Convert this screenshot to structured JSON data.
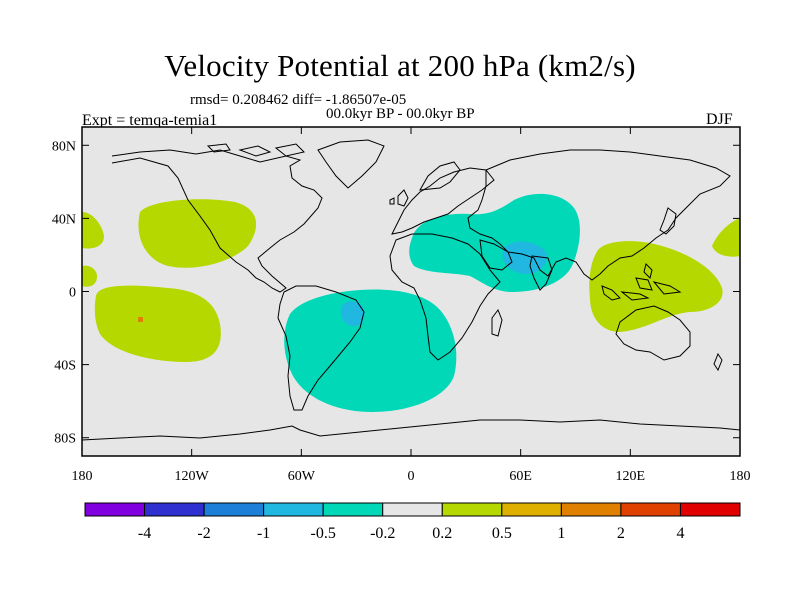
{
  "map": {
    "title": "Velocity Potential at 200 hPa (km2/s)",
    "stats_line": "rmsd= 0.208462 diff= -1.86507e-05",
    "period_line": "00.0kyr BP - 00.0kyr BP",
    "experiment_label": "Expt = temqa-temia1",
    "season_label": "DJF",
    "projection": "cylindrical equidistant",
    "lon_range": [
      -180,
      180
    ],
    "lat_range": [
      -90,
      90
    ],
    "lon_ticks": [
      {
        "value": -180,
        "label": "180"
      },
      {
        "value": -120,
        "label": "120W"
      },
      {
        "value": -60,
        "label": "60W"
      },
      {
        "value": 0,
        "label": "0"
      },
      {
        "value": 60,
        "label": "60E"
      },
      {
        "value": 120,
        "label": "120E"
      },
      {
        "value": 180,
        "label": "180"
      }
    ],
    "lat_ticks": [
      {
        "value": 80,
        "label": "80N"
      },
      {
        "value": 40,
        "label": "40N"
      },
      {
        "value": 0,
        "label": "0"
      },
      {
        "value": -40,
        "label": "40S"
      },
      {
        "value": -80,
        "label": "80S"
      }
    ]
  },
  "colorbar": {
    "colors": [
      "#8000e0",
      "#3030d0",
      "#1e7fd8",
      "#20b8e0",
      "#00d8b8",
      "#e6e6e6",
      "#b4d800",
      "#e0b000",
      "#e08000",
      "#e04000",
      "#e00000"
    ],
    "labels": [
      "-4",
      "-2",
      "-1",
      "-0.5",
      "-0.2",
      "0.2",
      "0.5",
      "1",
      "2",
      "4"
    ]
  },
  "colors": {
    "background_field": "#e6e6e6",
    "negative_weak": "#00d8b8",
    "negative_moderate": "#20b8e0",
    "positive_weak": "#b4d800",
    "positive_moderate": "#e0b000",
    "coastline": "#000000"
  }
}
